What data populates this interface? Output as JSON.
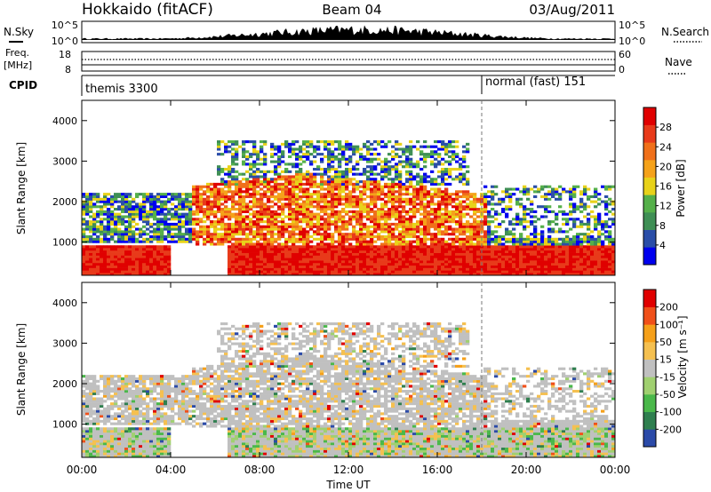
{
  "header": {
    "title": "Hokkaido (fitACF)",
    "beam": "Beam 04",
    "date": "03/Aug/2011"
  },
  "labels": {
    "nsky": "N.Sky",
    "nsearch": "N.Search",
    "freq": "Freq.",
    "mhz": "[MHz]",
    "nave": "Nave",
    "cpid": "CPID",
    "nsky_ticks": [
      "10^5",
      "10^0"
    ],
    "nsearch_ticks": [
      "10^5",
      "10^0"
    ],
    "freq_ticks": [
      "18",
      "8"
    ],
    "nave_ticks": [
      "60",
      "0"
    ]
  },
  "cpid_blocks": [
    {
      "label": "themis 3300",
      "start_hour": 0,
      "end_hour": 18
    },
    {
      "label": "normal (fast) 151",
      "start_hour": 18,
      "end_hour": 24
    }
  ],
  "colors": {
    "power": [
      "#0000ee",
      "#2b4ea8",
      "#3f8f55",
      "#55b04a",
      "#e8d21a",
      "#f5a21a",
      "#f0701a",
      "#e83a1a",
      "#e00000"
    ],
    "velocity": [
      "#e00000",
      "#f0501a",
      "#f5a01a",
      "#f5c050",
      "#c0c0c0",
      "#a0d070",
      "#4ab84a",
      "#2f7f4f",
      "#2b4aa8"
    ]
  },
  "chart_data": [
    {
      "type": "heatmap",
      "name": "Power",
      "xlabel": "",
      "ylabel": "Slant Range [km]",
      "xlim": [
        0,
        24
      ],
      "ylim": [
        180,
        4500
      ],
      "x_ticks": [
        "00:00",
        "04:00",
        "08:00",
        "12:00",
        "16:00",
        "20:00",
        "00:00"
      ],
      "y_ticks": [
        1000,
        2000,
        3000,
        4000
      ],
      "colorbar": {
        "label": "Power [dB]",
        "ticks": [
          4,
          8,
          12,
          16,
          20,
          24,
          28
        ],
        "range": [
          0,
          32
        ]
      }
    },
    {
      "type": "heatmap",
      "name": "Velocity",
      "xlabel": "Time UT",
      "ylabel": "Slant Range [km]",
      "xlim": [
        0,
        24
      ],
      "ylim": [
        180,
        4500
      ],
      "x_ticks": [
        "00:00",
        "04:00",
        "08:00",
        "12:00",
        "16:00",
        "20:00",
        "00:00"
      ],
      "y_ticks": [
        1000,
        2000,
        3000,
        4000
      ],
      "colorbar": {
        "label": "Velocity [m s⁻¹]",
        "ticks": [
          200,
          100,
          50,
          15,
          -15,
          -50,
          -100,
          -200
        ]
      }
    }
  ]
}
